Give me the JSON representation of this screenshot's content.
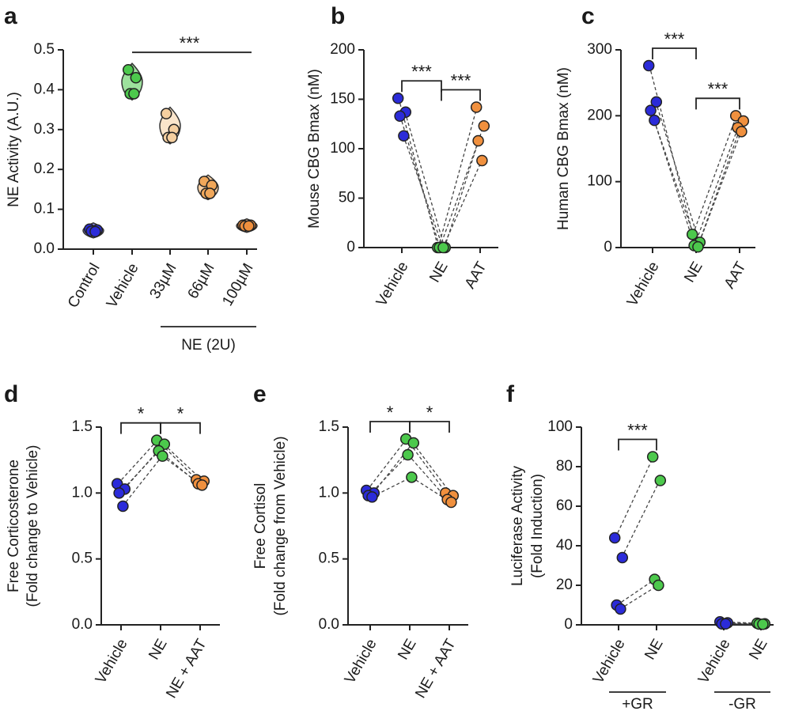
{
  "chart_data": [
    {
      "panel": "a",
      "type": "dot",
      "ylabel": [
        "NE Activity (A.U.)"
      ],
      "categories": [
        "Control",
        "Vehicle",
        "33µM",
        "66µM",
        "100µM"
      ],
      "values": [
        [
          0.05,
          0.048,
          0.045,
          0.044
        ],
        [
          0.45,
          0.43,
          0.39,
          0.39
        ],
        [
          0.34,
          0.3,
          0.28,
          0.28
        ],
        [
          0.17,
          0.16,
          0.14,
          0.14
        ],
        [
          0.06,
          0.06,
          0.058,
          0.058
        ]
      ],
      "colors": [
        "#2b2bd9",
        "#4cc94c",
        "#f5cfa0",
        "#f0a75a",
        "#f0903e"
      ],
      "ylim": [
        0,
        0.5
      ],
      "yticks": [
        {
          "value": 0,
          "label": "0.0"
        },
        0.1,
        0.2,
        0.3,
        0.4,
        0.5
      ],
      "violin": true,
      "paired": false,
      "significance": [
        {
          "label": "***",
          "from": 1,
          "to": 4,
          "bracket": false
        }
      ],
      "groups": [
        {
          "label": "NE (2U)",
          "from": 2,
          "to": 4
        }
      ]
    },
    {
      "panel": "b",
      "type": "dot",
      "ylabel": [
        "Mouse CBG Bmax (nM)"
      ],
      "categories": [
        "Vehicle",
        "NE",
        "AAT"
      ],
      "values": [
        [
          151,
          137,
          133,
          113
        ],
        [
          0,
          0,
          0,
          0
        ],
        [
          142,
          123,
          108,
          88
        ]
      ],
      "colors": [
        "#2b2bd9",
        "#4cc94c",
        "#f0903e"
      ],
      "ylim": [
        0,
        200
      ],
      "yticks": [
        0,
        50,
        100,
        150,
        200
      ],
      "violin": false,
      "paired": true,
      "significance": [
        {
          "label": "***",
          "from": 0,
          "to": 1,
          "bracket": true
        },
        {
          "label": "***",
          "from": 1,
          "to": 2,
          "bracket": true
        }
      ]
    },
    {
      "panel": "c",
      "type": "dot",
      "ylabel": [
        "Human CBG Bmax  (nM)"
      ],
      "categories": [
        "Vehicle",
        "NE",
        "AAT"
      ],
      "values": [
        [
          276,
          221,
          208,
          193
        ],
        [
          20,
          8,
          3,
          1
        ],
        [
          200,
          192,
          182,
          176
        ]
      ],
      "colors": [
        "#2b2bd9",
        "#4cc94c",
        "#f0903e"
      ],
      "ylim": [
        0,
        300
      ],
      "yticks": [
        0,
        100,
        200,
        300
      ],
      "violin": false,
      "paired": true,
      "significance": [
        {
          "label": "***",
          "from": 0,
          "to": 1,
          "bracket": true
        },
        {
          "label": "***",
          "from": 1,
          "to": 2,
          "bracket": true
        }
      ]
    },
    {
      "panel": "d",
      "type": "dot",
      "ylabel": [
        "Free Corticosterone",
        "(Fold change to Vehicle)"
      ],
      "categories": [
        "Vehicle",
        "NE",
        "NE + AAT"
      ],
      "values": [
        [
          1.07,
          1.03,
          1.0,
          0.9
        ],
        [
          1.4,
          1.37,
          1.32,
          1.28
        ],
        [
          1.1,
          1.09,
          1.07,
          1.06
        ]
      ],
      "colors": [
        "#2b2bd9",
        "#4cc94c",
        "#f0903e"
      ],
      "ylim": [
        0,
        1.5
      ],
      "yticks": [
        {
          "value": 0,
          "label": "0.0"
        },
        0.5,
        {
          "value": 1,
          "label": "1.0"
        },
        1.5
      ],
      "violin": false,
      "paired": true,
      "significance": [
        {
          "label": "*",
          "from": 0,
          "to": 1,
          "bracket": true
        },
        {
          "label": "*",
          "from": 1,
          "to": 2,
          "bracket": true
        }
      ]
    },
    {
      "panel": "e",
      "type": "dot",
      "ylabel": [
        "Free Cortisol",
        "(Fold change from Vehicle)"
      ],
      "categories": [
        "Vehicle",
        "NE",
        "NE + AAT"
      ],
      "values": [
        [
          1.02,
          1.0,
          0.98,
          0.97
        ],
        [
          1.41,
          1.38,
          1.29,
          1.12
        ],
        [
          1.0,
          0.98,
          0.95,
          0.93
        ]
      ],
      "colors": [
        "#2b2bd9",
        "#4cc94c",
        "#f0903e"
      ],
      "ylim": [
        0,
        1.5
      ],
      "yticks": [
        {
          "value": 0,
          "label": "0.0"
        },
        0.5,
        {
          "value": 1,
          "label": "1.0"
        },
        1.5
      ],
      "violin": false,
      "paired": true,
      "significance": [
        {
          "label": "*",
          "from": 0,
          "to": 1,
          "bracket": true
        },
        {
          "label": "*",
          "from": 1,
          "to": 2,
          "bracket": true
        }
      ]
    },
    {
      "panel": "f",
      "type": "dot",
      "ylabel": [
        "Luciferase Activity",
        "(Fold Induction)"
      ],
      "categories": [
        "Vehicle",
        "NE",
        "Vehicle",
        "NE"
      ],
      "values": [
        [
          44,
          34,
          10,
          8
        ],
        [
          85,
          73,
          23,
          20
        ],
        [
          1.5,
          1,
          0.5,
          0.5
        ],
        [
          0.8,
          0.5,
          0.4,
          0.3
        ]
      ],
      "colors": [
        "#2b2bd9",
        "#4cc94c",
        "#2b2bd9",
        "#4cc94c"
      ],
      "ylim": [
        0,
        100
      ],
      "yticks": [
        0,
        20,
        40,
        60,
        80,
        100
      ],
      "violin": false,
      "paired": true,
      "significance": [
        {
          "label": "***",
          "from": 0,
          "to": 1,
          "bracket": true
        }
      ],
      "groups": [
        {
          "label": "+GR",
          "from": 0,
          "to": 1
        },
        {
          "label": "-GR",
          "from": 2,
          "to": 3
        }
      ]
    }
  ]
}
